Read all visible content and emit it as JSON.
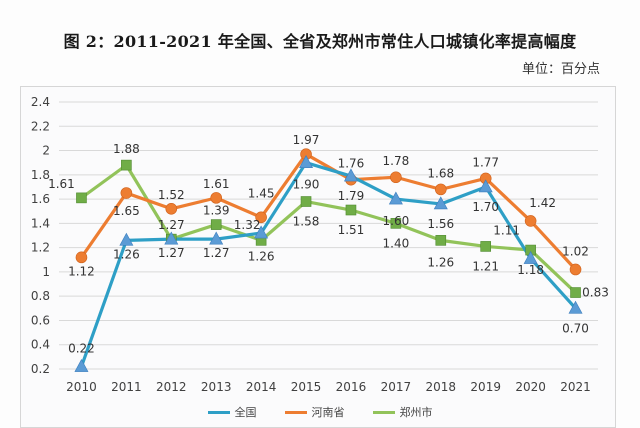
{
  "header": {
    "title": "图 2：2011-2021 年全国、全省及郑州市常住人口城镇化率提高幅度",
    "unit": "单位：百分点"
  },
  "chart_data": {
    "type": "line",
    "title": "图 2：2011-2021 年全国、全省及郑州市常住人口城镇化率提高幅度",
    "xlabel": "",
    "ylabel": "单位：百分点",
    "categories": [
      "2010",
      "2011",
      "2012",
      "2013",
      "2014",
      "2015",
      "2016",
      "2017",
      "2018",
      "2019",
      "2020",
      "2021"
    ],
    "ylim": [
      0.2,
      2.4
    ],
    "yticks": [
      "0.2",
      "0.4",
      "0.6",
      "0.8",
      "1",
      "1.2",
      "1.4",
      "1.6",
      "1.8",
      "2",
      "2.2",
      "2.4"
    ],
    "ytick_values": [
      0.2,
      0.4,
      0.6,
      0.8,
      1.0,
      1.2,
      1.4,
      1.6,
      1.8,
      2.0,
      2.2,
      2.4
    ],
    "grid": true,
    "legend_position": "bottom",
    "series": [
      {
        "name": "全国",
        "line_color": "#2E9FC6",
        "marker_color": "#5B9BD5",
        "marker": "triangle",
        "values": [
          0.22,
          1.26,
          1.27,
          1.27,
          1.32,
          1.9,
          1.79,
          1.6,
          1.56,
          1.7,
          1.11,
          0.7
        ],
        "labels": [
          "0.22",
          "1.26",
          "1.27",
          "1.27",
          "1.32",
          "1.90",
          "1.79",
          "1.60",
          "1.56",
          "1.70",
          "1.11",
          "0.70"
        ]
      },
      {
        "name": "河南省",
        "line_color": "#ED7D31",
        "marker_color": "#ED7D31",
        "marker": "circle",
        "values": [
          1.12,
          1.65,
          1.52,
          1.61,
          1.45,
          1.97,
          1.76,
          1.78,
          1.68,
          1.77,
          1.42,
          1.02
        ],
        "labels": [
          "1.12",
          "1.65",
          "1.52",
          "1.61",
          "1.45",
          "1.97",
          "1.76",
          "1.78",
          "1.68",
          "1.77",
          "1.42",
          "1.02"
        ]
      },
      {
        "name": "郑州市",
        "line_color": "#92C35A",
        "marker_color": "#70AD47",
        "marker": "square",
        "values": [
          1.61,
          1.88,
          1.27,
          1.39,
          1.26,
          1.58,
          1.51,
          1.4,
          1.26,
          1.21,
          1.18,
          0.83
        ],
        "labels": [
          "1.61",
          "1.88",
          "1.27",
          "1.39",
          "1.26",
          "1.58",
          "1.51",
          "1.40",
          "1.26",
          "1.21",
          "1.18",
          "0.83"
        ]
      }
    ]
  }
}
